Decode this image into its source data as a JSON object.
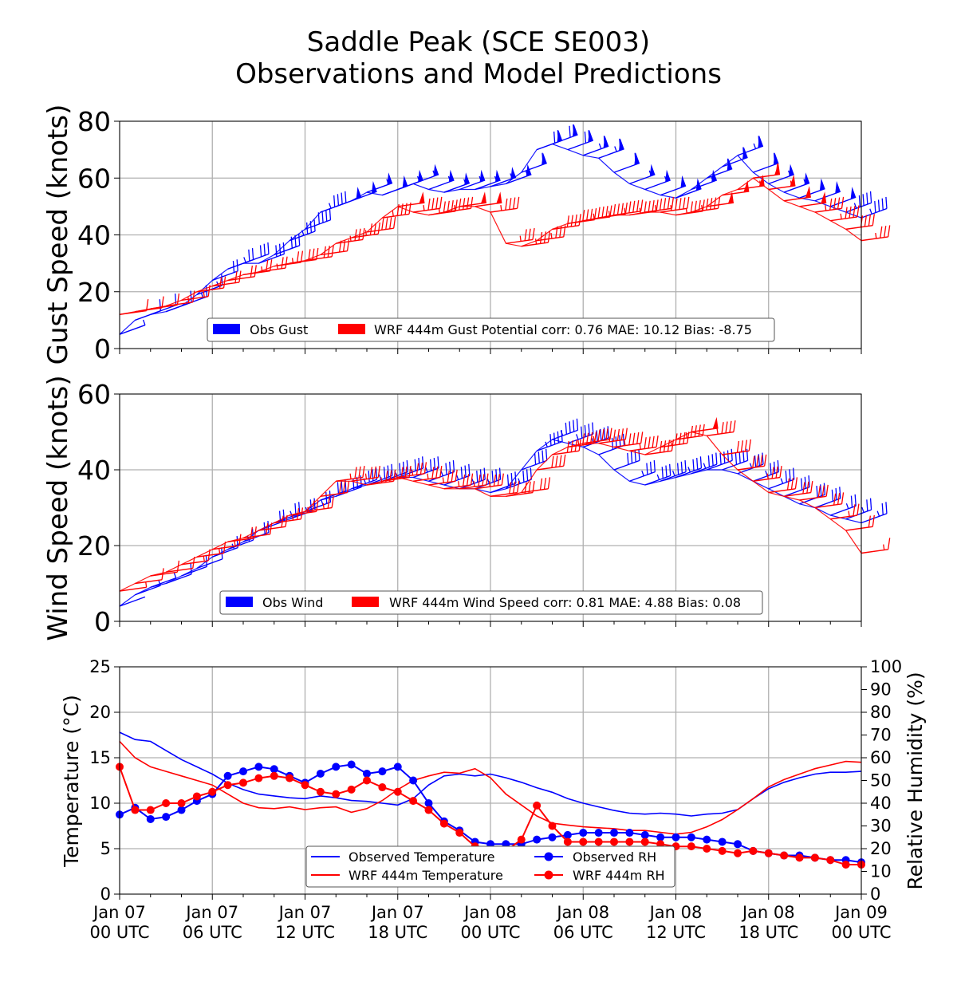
{
  "title_line1": "Saddle Peak (SCE SE003)",
  "title_line2": "Observations and Model Predictions",
  "colors": {
    "obs": "#0000ff",
    "wrf": "#ff0000",
    "wrf_rh_light": "#ffb3b3",
    "grid": "#b0b0b0"
  },
  "x_ticks": [
    {
      "l1": "Jan 07",
      "l2": "00 UTC"
    },
    {
      "l1": "Jan 07",
      "l2": "06 UTC"
    },
    {
      "l1": "Jan 07",
      "l2": "12 UTC"
    },
    {
      "l1": "Jan 07",
      "l2": "18 UTC"
    },
    {
      "l1": "Jan 08",
      "l2": "00 UTC"
    },
    {
      "l1": "Jan 08",
      "l2": "06 UTC"
    },
    {
      "l1": "Jan 08",
      "l2": "12 UTC"
    },
    {
      "l1": "Jan 08",
      "l2": "18 UTC"
    },
    {
      "l1": "Jan 09",
      "l2": "00 UTC"
    }
  ],
  "chart_data": [
    {
      "type": "line",
      "ylabel": "Gust Speed (knots)",
      "ylim": [
        0,
        80
      ],
      "yticks": [
        "0",
        "20",
        "40",
        "60",
        "80"
      ],
      "x_unit": "hours since Jan 07 00 UTC",
      "xlim": [
        0,
        48
      ],
      "grid": true,
      "legend_position": "lower-center",
      "series": [
        {
          "name": "Obs Gust",
          "color": "#0000ff",
          "x": [
            0,
            1,
            2,
            3,
            4,
            5,
            6,
            7,
            8,
            9,
            10,
            11,
            12,
            13,
            14,
            15,
            16,
            17,
            18,
            19,
            20,
            21,
            22,
            23,
            24,
            25,
            26,
            27,
            28,
            29,
            30,
            31,
            32,
            33,
            34,
            35,
            36,
            37,
            38,
            39,
            40,
            41,
            42,
            43,
            44,
            45,
            46,
            47,
            48
          ],
          "values": [
            5,
            10,
            12,
            13,
            15,
            19,
            24,
            28,
            30,
            30,
            33,
            38,
            42,
            48,
            50,
            52,
            55,
            54,
            56,
            58,
            56,
            55,
            56,
            56,
            57,
            58,
            62,
            70,
            72,
            70,
            68,
            67,
            62,
            58,
            56,
            54,
            53,
            56,
            60,
            64,
            68,
            62,
            58,
            55,
            53,
            52,
            50,
            48,
            46
          ]
        },
        {
          "name": "WRF 444m Gust Potential corr: 0.76 MAE: 10.12 Bias: -8.75",
          "color": "#ff0000",
          "x": [
            0,
            1,
            2,
            3,
            4,
            5,
            6,
            7,
            8,
            9,
            10,
            11,
            12,
            13,
            14,
            15,
            16,
            17,
            18,
            19,
            20,
            21,
            22,
            23,
            24,
            25,
            26,
            27,
            28,
            29,
            30,
            31,
            32,
            33,
            34,
            35,
            36,
            37,
            38,
            39,
            40,
            41,
            42,
            43,
            44,
            45,
            46,
            47,
            48
          ],
          "values": [
            12,
            13,
            14,
            15,
            17,
            20,
            22,
            24,
            26,
            27,
            29,
            30,
            31,
            33,
            37,
            39,
            41,
            46,
            50,
            48,
            47,
            48,
            50,
            50,
            48,
            37,
            36,
            38,
            42,
            44,
            45,
            46,
            47,
            47,
            48,
            48,
            47,
            48,
            50,
            54,
            56,
            60,
            56,
            52,
            50,
            48,
            45,
            42,
            38
          ]
        }
      ]
    },
    {
      "type": "line",
      "ylabel": "Wind Speed (knots)",
      "ylim": [
        0,
        60
      ],
      "yticks": [
        "0",
        "20",
        "40",
        "60"
      ],
      "x_unit": "hours since Jan 07 00 UTC",
      "xlim": [
        0,
        48
      ],
      "grid": true,
      "legend_position": "lower-center",
      "series": [
        {
          "name": "Obs Wind",
          "color": "#0000ff",
          "x": [
            0,
            1,
            2,
            3,
            4,
            5,
            6,
            7,
            8,
            9,
            10,
            11,
            12,
            13,
            14,
            15,
            16,
            17,
            18,
            19,
            20,
            21,
            22,
            23,
            24,
            25,
            26,
            27,
            28,
            29,
            30,
            31,
            32,
            33,
            34,
            35,
            36,
            37,
            38,
            39,
            40,
            41,
            42,
            43,
            44,
            45,
            46,
            47,
            48
          ],
          "values": [
            4,
            7,
            9,
            10,
            12,
            14,
            17,
            19,
            21,
            24,
            26,
            27,
            29,
            32,
            33,
            35,
            36,
            37,
            38,
            38,
            37,
            36,
            35,
            35,
            34,
            35,
            40,
            45,
            48,
            47,
            46,
            44,
            40,
            37,
            36,
            37,
            38,
            39,
            40,
            40,
            39,
            37,
            35,
            33,
            31,
            30,
            28,
            27,
            26
          ]
        },
        {
          "name": "WRF 444m Wind Speed corr: 0.81 MAE: 4.88 Bias: 0.08",
          "color": "#ff0000",
          "x": [
            0,
            1,
            2,
            3,
            4,
            5,
            6,
            7,
            8,
            9,
            10,
            11,
            12,
            13,
            14,
            15,
            16,
            17,
            18,
            19,
            20,
            21,
            22,
            23,
            24,
            25,
            26,
            27,
            28,
            29,
            30,
            31,
            32,
            33,
            34,
            35,
            36,
            37,
            38,
            39,
            40,
            41,
            42,
            43,
            44,
            45,
            46,
            47,
            48
          ],
          "values": [
            8,
            10,
            12,
            13,
            15,
            17,
            19,
            21,
            22,
            24,
            26,
            28,
            29,
            33,
            37,
            37,
            36,
            37,
            38,
            37,
            36,
            35,
            35,
            35,
            33,
            33,
            34,
            40,
            44,
            46,
            47,
            47,
            46,
            45,
            44,
            46,
            48,
            50,
            49,
            44,
            40,
            37,
            34,
            33,
            32,
            30,
            27,
            24,
            18
          ]
        }
      ]
    },
    {
      "type": "line",
      "ylabel": "Temperature (°C)",
      "ylim": [
        0,
        25
      ],
      "yticks": [
        "0",
        "5",
        "10",
        "15",
        "20",
        "25"
      ],
      "y2label": "Relative Humidity (%)",
      "y2lim": [
        0,
        100
      ],
      "y2ticks": [
        "0",
        "10",
        "20",
        "30",
        "40",
        "50",
        "60",
        "70",
        "80",
        "90",
        "100"
      ],
      "x_unit": "hours since Jan 07 00 UTC",
      "xlim": [
        0,
        48
      ],
      "grid": true,
      "legend_position": "lower-center",
      "series": [
        {
          "name": "Observed Temperature",
          "color": "#0000ff",
          "axis": "left",
          "x": [
            0,
            1,
            2,
            3,
            4,
            5,
            6,
            7,
            8,
            9,
            10,
            11,
            12,
            13,
            14,
            15,
            16,
            17,
            18,
            19,
            20,
            21,
            22,
            23,
            24,
            25,
            26,
            27,
            28,
            29,
            30,
            31,
            32,
            33,
            34,
            35,
            36,
            37,
            38,
            39,
            40,
            41,
            42,
            43,
            44,
            45,
            46,
            47,
            48
          ],
          "values": [
            17.8,
            17.0,
            16.8,
            15.8,
            14.8,
            14.0,
            13.2,
            12.2,
            11.5,
            11.0,
            10.8,
            10.6,
            10.5,
            10.8,
            10.6,
            10.3,
            10.2,
            10.0,
            9.8,
            10.5,
            12.0,
            13.0,
            13.2,
            13.0,
            13.2,
            12.8,
            12.3,
            11.7,
            11.2,
            10.5,
            10.0,
            9.6,
            9.2,
            8.9,
            8.8,
            8.9,
            8.8,
            8.6,
            8.8,
            8.9,
            9.3,
            10.5,
            11.6,
            12.3,
            12.8,
            13.2,
            13.4,
            13.4,
            13.5
          ]
        },
        {
          "name": "WRF 444m Temperature",
          "color": "#ff0000",
          "axis": "left",
          "x": [
            0,
            1,
            2,
            3,
            4,
            5,
            6,
            7,
            8,
            9,
            10,
            11,
            12,
            13,
            14,
            15,
            16,
            17,
            18,
            19,
            20,
            21,
            22,
            23,
            24,
            25,
            26,
            27,
            28,
            29,
            30,
            31,
            32,
            33,
            34,
            35,
            36,
            37,
            38,
            39,
            40,
            41,
            42,
            43,
            44,
            45,
            46,
            47,
            48
          ],
          "values": [
            16.8,
            15.0,
            14.0,
            13.5,
            13.0,
            12.5,
            12.0,
            11.0,
            10.0,
            9.5,
            9.4,
            9.6,
            9.3,
            9.5,
            9.6,
            9.0,
            9.4,
            10.3,
            11.5,
            12.5,
            13.0,
            13.4,
            13.3,
            13.8,
            12.8,
            11.0,
            9.8,
            8.6,
            7.8,
            7.6,
            7.4,
            7.3,
            7.2,
            7.0,
            7.0,
            6.8,
            6.6,
            6.8,
            7.4,
            8.2,
            9.3,
            10.5,
            11.8,
            12.6,
            13.2,
            13.8,
            14.2,
            14.6,
            14.5
          ]
        },
        {
          "name": "Observed RH",
          "color": "#0000ff",
          "axis": "right",
          "x": [
            0,
            1,
            2,
            3,
            4,
            5,
            6,
            7,
            8,
            9,
            10,
            11,
            12,
            13,
            14,
            15,
            16,
            17,
            18,
            19,
            20,
            21,
            22,
            23,
            24,
            25,
            26,
            27,
            28,
            29,
            30,
            31,
            32,
            33,
            34,
            35,
            36,
            37,
            38,
            39,
            40,
            41,
            42,
            43,
            44,
            45,
            46,
            47,
            48
          ],
          "values": [
            35,
            38,
            33,
            34,
            37,
            41,
            44,
            52,
            54,
            56,
            55,
            52,
            49,
            53,
            56,
            57,
            53,
            54,
            56,
            50,
            40,
            32,
            28,
            23,
            22,
            22,
            22,
            24,
            25,
            26,
            27,
            27,
            27,
            27,
            26,
            25,
            25,
            25,
            24,
            23,
            22,
            19,
            18,
            17,
            17,
            16,
            15,
            15,
            14
          ]
        },
        {
          "name": "WRF 444m RH",
          "color": "#ff0000",
          "axis": "right",
          "x": [
            0,
            1,
            2,
            3,
            4,
            5,
            6,
            7,
            8,
            9,
            10,
            11,
            12,
            13,
            14,
            15,
            16,
            17,
            18,
            19,
            20,
            21,
            22,
            23,
            24,
            25,
            26,
            27,
            28,
            29,
            30,
            31,
            32,
            33,
            34,
            35,
            36,
            37,
            38,
            39,
            40,
            41,
            42,
            43,
            44,
            45,
            46,
            47,
            48
          ],
          "values": [
            56,
            37,
            37,
            40,
            40,
            43,
            45,
            48,
            49,
            51,
            52,
            51,
            48,
            45,
            44,
            46,
            50,
            47,
            45,
            41,
            37,
            31,
            27,
            21,
            19,
            19,
            24,
            39,
            30,
            23,
            23,
            23,
            23,
            23,
            23,
            22,
            21,
            21,
            20,
            19,
            18,
            19,
            18,
            17,
            16,
            16,
            15,
            13,
            13
          ]
        }
      ]
    }
  ]
}
